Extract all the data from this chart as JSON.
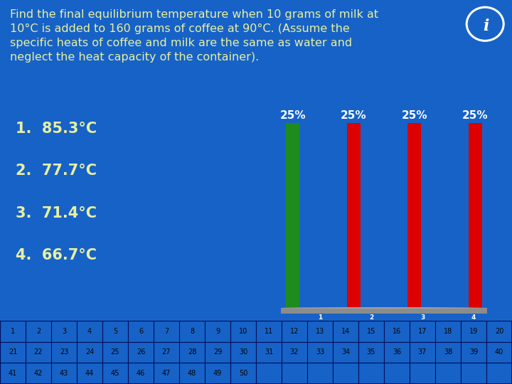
{
  "background_color": "#1762C7",
  "title_text": "Find the final equilibrium temperature when 10 grams of milk at\n10°C is added to 160 grams of coffee at 90°C. (Assume the\nspecific heats of coffee and milk are the same as water and\nneglect the heat capacity of the container).",
  "title_color": "#E8F0A0",
  "title_fontsize": 11.5,
  "options": [
    "1.  85.3°C",
    "2.  77.7°C",
    "3.  71.4°C",
    "4.  66.7°C"
  ],
  "options_color": "#E8F0A0",
  "options_fontsize": 15,
  "bar_values": [
    25,
    25,
    25,
    25
  ],
  "bar_colors": [
    "#1E8B1E",
    "#DD0000",
    "#DD0000",
    "#DD0000"
  ],
  "bar_positions": [
    0,
    1,
    2,
    3
  ],
  "bar_width": 0.22,
  "bar_label_color": "#FFFFFF",
  "bar_label_fontsize": 11,
  "platform_color": "#8C8C8C",
  "grid_numbers_row1": [
    1,
    2,
    3,
    4,
    5,
    6,
    7,
    8,
    9,
    10,
    11,
    12,
    13,
    14,
    15,
    16,
    17,
    18,
    19,
    20
  ],
  "grid_numbers_row2": [
    21,
    22,
    23,
    24,
    25,
    26,
    27,
    28,
    29,
    30,
    31,
    32,
    33,
    34,
    35,
    36,
    37,
    38,
    39,
    40
  ],
  "grid_numbers_row3": [
    41,
    42,
    43,
    44,
    45,
    46,
    47,
    48,
    49,
    50
  ],
  "answer_labels": [
    "1",
    "2",
    "3",
    "4"
  ],
  "answer_label_cols": [
    12,
    14,
    16,
    18
  ]
}
